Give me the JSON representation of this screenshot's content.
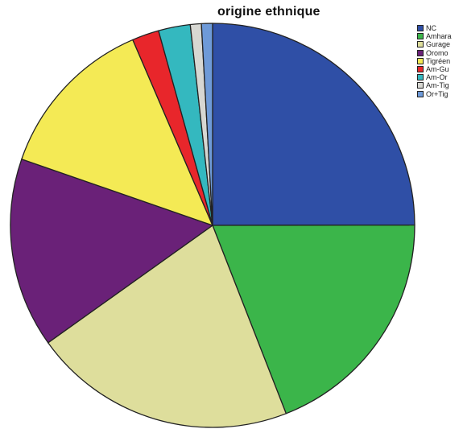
{
  "chart_data": {
    "type": "pie",
    "title": "origine ethnique",
    "legend_position": "top-right",
    "series": [
      {
        "name": "NC",
        "value": 25.5,
        "color": "#2f4fa6"
      },
      {
        "name": "Amhara",
        "value": 19.5,
        "color": "#3bb54a"
      },
      {
        "name": "Gurage",
        "value": 21.5,
        "color": "#dede9c"
      },
      {
        "name": "Oromo",
        "value": 15.5,
        "color": "#6a2178"
      },
      {
        "name": "Tigréen",
        "value": 13.5,
        "color": "#f4ea55"
      },
      {
        "name": "Am-Gu",
        "value": 2.2,
        "color": "#e8262b"
      },
      {
        "name": "Am-Or",
        "value": 2.6,
        "color": "#34b8bf"
      },
      {
        "name": "Am-Tig",
        "value": 0.9,
        "color": "#d7d7d2"
      },
      {
        "name": "Or+Tig",
        "value": 0.9,
        "color": "#6e9ad8"
      }
    ]
  }
}
